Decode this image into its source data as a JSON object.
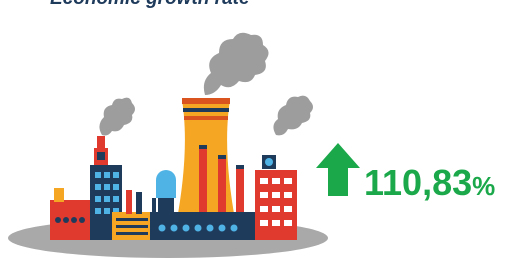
{
  "title": "Economic growth rate",
  "growth": {
    "value": "110,83",
    "unit": "%"
  }
}
